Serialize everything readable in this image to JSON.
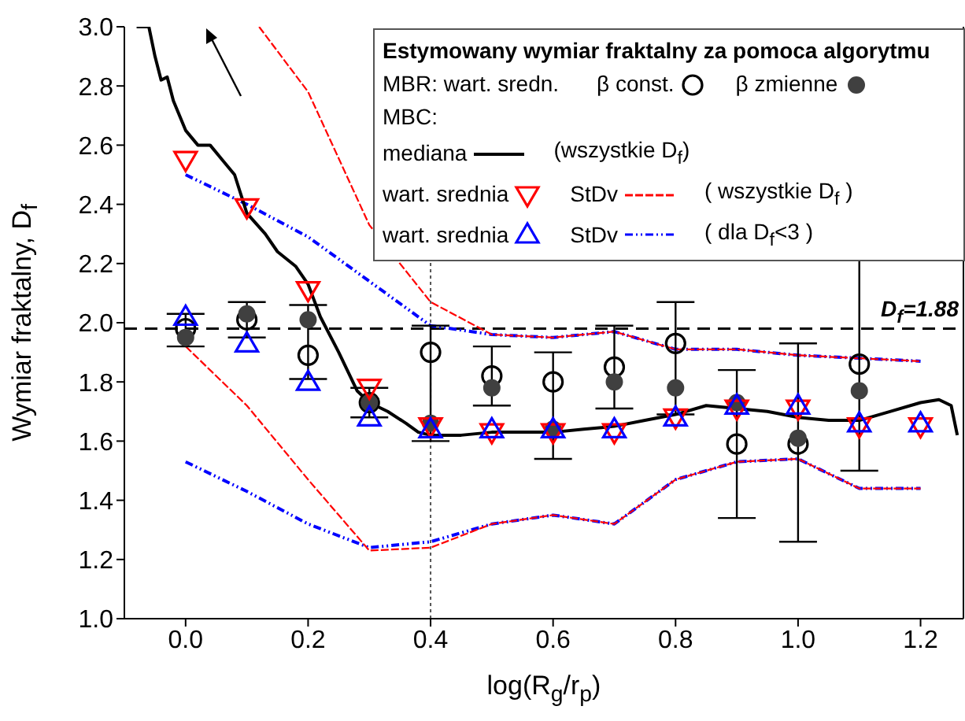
{
  "chart_data": {
    "type": "scatter",
    "xlabel": "log(R$_{g}$/r$_{p}$)",
    "ylabel": "Wymiar fraktalny, D$_{f}$",
    "legend_title": "Estymowany wymiar fraktalny za pomoca algorytmu",
    "x": [
      0,
      0.1,
      0.2,
      0.3,
      0.4,
      0.5,
      0.6,
      0.7,
      0.8,
      0.9,
      1.0,
      1.1,
      1.2
    ],
    "xlim": [
      -0.1,
      1.27
    ],
    "ylim": [
      1.0,
      3.0
    ],
    "xticks": [
      {
        "value": 0,
        "label": "0.0"
      },
      {
        "value": 0.2,
        "label": "0.2"
      },
      {
        "value": 0.4,
        "label": "0.4"
      },
      {
        "value": 0.6,
        "label": "0.6"
      },
      {
        "value": 0.8,
        "label": "0.8"
      },
      {
        "value": 1.0,
        "label": "1.0"
      },
      {
        "value": 1.2,
        "label": "1.2"
      }
    ],
    "yticks": [
      {
        "value": 1.0,
        "label": "1.0"
      },
      {
        "value": 1.2,
        "label": "1.2"
      },
      {
        "value": 1.4,
        "label": "1.4"
      },
      {
        "value": 1.6,
        "label": "1.6"
      },
      {
        "value": 1.8,
        "label": "1.8"
      },
      {
        "value": 2.0,
        "label": "2.0"
      },
      {
        "value": 2.2,
        "label": "2.2"
      },
      {
        "value": 2.4,
        "label": "2.4"
      },
      {
        "value": 2.6,
        "label": "2.6"
      },
      {
        "value": 2.8,
        "label": "2.8"
      },
      {
        "value": 3.0,
        "label": "3.0"
      }
    ],
    "legend": "top right",
    "series": [
      {
        "name": "β const.",
        "marker": "circle_open",
        "color": "#000000",
        "values": [
          1.98,
          2.01,
          1.89,
          1.73,
          1.9,
          1.82,
          1.8,
          1.85,
          1.93,
          1.59,
          1.59,
          1.86,
          null
        ],
        "errors": [
          [
            1.92,
            2.03
          ],
          [
            1.95,
            2.07
          ],
          [
            1.81,
            2.06
          ],
          [
            1.68,
            1.78
          ],
          [
            1.6,
            1.99
          ],
          [
            1.72,
            1.92
          ],
          [
            1.54,
            1.9
          ],
          [
            1.71,
            1.99
          ],
          [
            1.69,
            2.07
          ],
          [
            1.34,
            1.84
          ],
          [
            1.26,
            1.93
          ],
          [
            1.5,
            2.22
          ],
          null
        ]
      },
      {
        "name": "β zmienne",
        "marker": "circle",
        "color": "#404040",
        "values": [
          1.95,
          2.03,
          2.01,
          1.73,
          1.66,
          1.78,
          1.64,
          1.8,
          1.78,
          1.73,
          1.61,
          1.77,
          null
        ]
      },
      {
        "name": "mediana",
        "type": "line",
        "color": "#000000",
        "line_style": "solid",
        "x": [
          -0.08,
          -0.06,
          -0.05,
          -0.04,
          -0.03,
          -0.02,
          0,
          0.02,
          0.04,
          0.06,
          0.08,
          0.1,
          0.13,
          0.15,
          0.18,
          0.2,
          0.22,
          0.25,
          0.28,
          0.3,
          0.33,
          0.36,
          0.38,
          0.4,
          0.45,
          0.5,
          0.55,
          0.6,
          0.65,
          0.7,
          0.75,
          0.8,
          0.85,
          0.9,
          0.95,
          1.0,
          1.05,
          1.1,
          1.15,
          1.2,
          1.23,
          1.25,
          1.26
        ],
        "values": [
          3.0,
          3.0,
          2.9,
          2.82,
          2.83,
          2.75,
          2.65,
          2.6,
          2.6,
          2.55,
          2.5,
          2.37,
          2.3,
          2.24,
          2.19,
          2.13,
          2.02,
          1.9,
          1.77,
          1.73,
          1.7,
          1.66,
          1.63,
          1.62,
          1.62,
          1.63,
          1.63,
          1.63,
          1.64,
          1.65,
          1.67,
          1.69,
          1.72,
          1.71,
          1.7,
          1.68,
          1.67,
          1.67,
          1.7,
          1.73,
          1.74,
          1.72,
          1.62
        ]
      },
      {
        "name": "wart. srednia",
        "marker": "triangle_down",
        "color": "#ff0000",
        "values": [
          2.55,
          2.39,
          2.11,
          1.78,
          1.65,
          1.63,
          1.63,
          1.63,
          1.68,
          1.71,
          1.71,
          1.65,
          1.65
        ]
      },
      {
        "name": "StDv",
        "type": "line",
        "color": "#ff0000",
        "line_style": "dashed",
        "x": [
          0.12,
          0.2,
          0.3,
          0.4,
          0.5,
          0.6,
          0.7,
          0.8,
          0.9,
          1.0,
          1.1,
          1.2
        ],
        "values": [
          3.0,
          2.78,
          2.33,
          2.07,
          1.96,
          1.95,
          1.97,
          1.91,
          1.91,
          1.89,
          1.88,
          1.87
        ]
      },
      {
        "type": "line",
        "color": "#ff0000",
        "line_style": "dashed",
        "values": [
          1.92,
          1.72,
          1.47,
          1.23,
          1.24,
          1.32,
          1.35,
          1.32,
          1.47,
          1.53,
          1.54,
          1.44,
          1.44
        ]
      },
      {
        "name": "wart. srednia",
        "marker": "triangle",
        "color": "#0000ff",
        "values": [
          2.02,
          1.93,
          1.8,
          1.68,
          1.64,
          1.64,
          1.64,
          1.64,
          1.68,
          1.72,
          1.72,
          1.66,
          1.66
        ]
      },
      {
        "name": "StDv",
        "type": "line",
        "color": "#0000ff",
        "line_style": "dotted",
        "values": [
          2.5,
          2.4,
          2.29,
          2.14,
          1.99,
          1.96,
          1.95,
          1.97,
          1.91,
          1.91,
          1.89,
          1.88,
          1.87
        ]
      },
      {
        "type": "line",
        "color": "#0000ff",
        "line_style": "dotted",
        "values": [
          1.53,
          1.43,
          1.32,
          1.24,
          1.26,
          1.32,
          1.35,
          1.32,
          1.47,
          1.53,
          1.54,
          1.44,
          1.44
        ]
      }
    ],
    "ref_lines": [
      {
        "axis": "y",
        "value": 1.98,
        "color": "#000000",
        "line_style": "dashed"
      },
      {
        "axis": "x",
        "value": 0.4,
        "color": "#555555",
        "line_style": "dotted"
      }
    ],
    "annotations": [
      "MBR: wart. sredn.",
      "MBC:",
      "(wszystkie D$_{f}$)",
      "( wszystkie D$_{f}$ )",
      "( dla D$_{f}$<3 )",
      "D$_{f}$=1.88"
    ]
  }
}
